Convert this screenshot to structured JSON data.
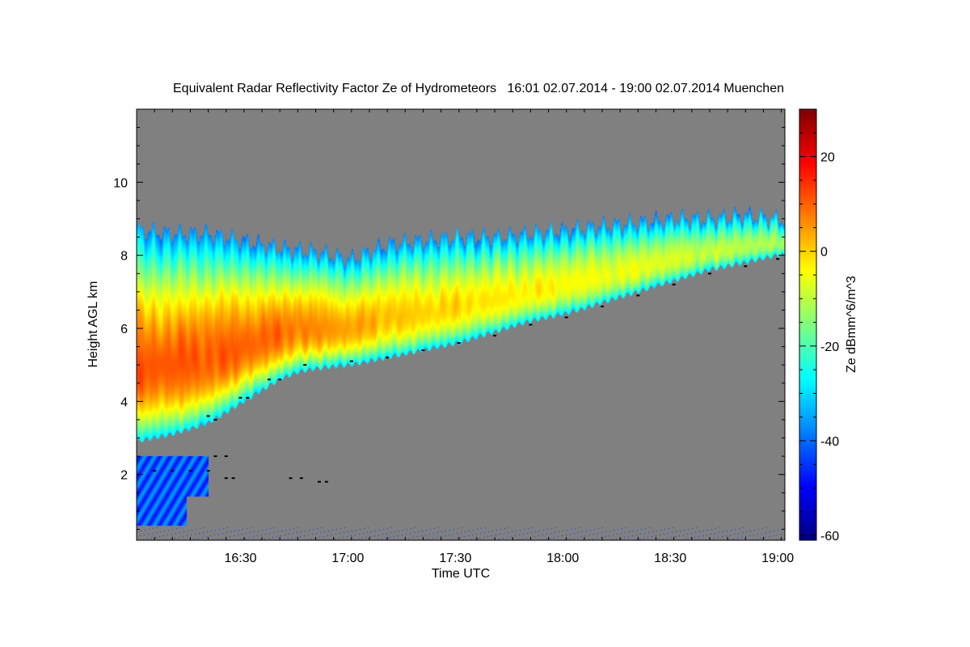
{
  "chart_data": {
    "type": "heatmap",
    "title": "Equivalent Radar Reflectivity Factor Ze of Hydrometeors   16:01 02.07.2014 - 19:00 02.07.2014 Muenchen",
    "xlabel": "Time UTC",
    "ylabel": "Height AGL km",
    "colorbar_label": "Ze dBmm^6/m^3",
    "x_range_minutes": [
      0,
      180
    ],
    "x_ticks": [
      {
        "label": "16:30",
        "value": 29
      },
      {
        "label": "17:00",
        "value": 59
      },
      {
        "label": "17:30",
        "value": 89
      },
      {
        "label": "18:00",
        "value": 119
      },
      {
        "label": "18:30",
        "value": 149
      },
      {
        "label": "19:00",
        "value": 179
      }
    ],
    "y_range": [
      0.2,
      12.0
    ],
    "y_ticks": [
      2,
      4,
      6,
      8,
      10
    ],
    "colorbar_range": [
      -61,
      30
    ],
    "colorbar_ticks": [
      20,
      0,
      -20,
      -40,
      -60
    ],
    "colormap": [
      "#00007f",
      "#0000ff",
      "#007fff",
      "#00ffff",
      "#7fff7f",
      "#ffff00",
      "#ff7f00",
      "#ff0000",
      "#7f0000"
    ],
    "background_color": "#808080",
    "cloud_layer": {
      "top_km": [
        [
          0,
          8.7
        ],
        [
          10,
          8.6
        ],
        [
          20,
          8.6
        ],
        [
          30,
          8.4
        ],
        [
          40,
          8.2
        ],
        [
          50,
          8.1
        ],
        [
          60,
          7.9
        ],
        [
          70,
          8.3
        ],
        [
          80,
          8.4
        ],
        [
          90,
          8.5
        ],
        [
          100,
          8.5
        ],
        [
          110,
          8.6
        ],
        [
          120,
          8.7
        ],
        [
          130,
          8.8
        ],
        [
          140,
          8.9
        ],
        [
          150,
          9.0
        ],
        [
          160,
          9.0
        ],
        [
          170,
          9.1
        ],
        [
          179,
          9.0
        ]
      ],
      "base_km": [
        [
          0,
          2.9
        ],
        [
          10,
          3.1
        ],
        [
          20,
          3.4
        ],
        [
          25,
          3.7
        ],
        [
          30,
          4.0
        ],
        [
          35,
          4.3
        ],
        [
          40,
          4.6
        ],
        [
          45,
          4.8
        ],
        [
          50,
          4.9
        ],
        [
          60,
          5.0
        ],
        [
          70,
          5.2
        ],
        [
          80,
          5.4
        ],
        [
          90,
          5.6
        ],
        [
          100,
          5.9
        ],
        [
          110,
          6.2
        ],
        [
          120,
          6.4
        ],
        [
          130,
          6.7
        ],
        [
          140,
          7.0
        ],
        [
          150,
          7.3
        ],
        [
          160,
          7.6
        ],
        [
          170,
          7.8
        ],
        [
          179,
          8.0
        ]
      ],
      "peak_dbz": [
        [
          0,
          11
        ],
        [
          20,
          11
        ],
        [
          40,
          9
        ],
        [
          60,
          4
        ],
        [
          80,
          0
        ],
        [
          100,
          -2
        ],
        [
          120,
          -4
        ],
        [
          140,
          -6
        ],
        [
          160,
          -9
        ],
        [
          179,
          -12
        ]
      ],
      "peak_rel_height": 0.35
    },
    "low_echo": {
      "time_range": [
        0,
        20
      ],
      "height_range_km": [
        0.6,
        2.5
      ],
      "dbz": -42
    },
    "melting_layer_points": [
      [
        20,
        3.6
      ],
      [
        22,
        3.5
      ],
      [
        29,
        4.1
      ],
      [
        31,
        4.1
      ],
      [
        37,
        4.6
      ],
      [
        40,
        4.6
      ],
      [
        47,
        5.0
      ],
      [
        60,
        5.1
      ],
      [
        70,
        5.2
      ],
      [
        80,
        5.4
      ],
      [
        90,
        5.6
      ],
      [
        100,
        5.8
      ],
      [
        110,
        6.1
      ],
      [
        120,
        6.3
      ],
      [
        130,
        6.6
      ],
      [
        140,
        6.9
      ],
      [
        150,
        7.2
      ],
      [
        160,
        7.5
      ],
      [
        170,
        7.7
      ],
      [
        179,
        7.9
      ],
      [
        5,
        2.1
      ],
      [
        10,
        2.1
      ],
      [
        15,
        2.1
      ],
      [
        20,
        2.1
      ],
      [
        22,
        2.5
      ],
      [
        25,
        2.5
      ],
      [
        25,
        1.9
      ],
      [
        27,
        1.9
      ],
      [
        43,
        1.9
      ],
      [
        46,
        1.9
      ],
      [
        51,
        1.8
      ],
      [
        53,
        1.8
      ]
    ]
  }
}
